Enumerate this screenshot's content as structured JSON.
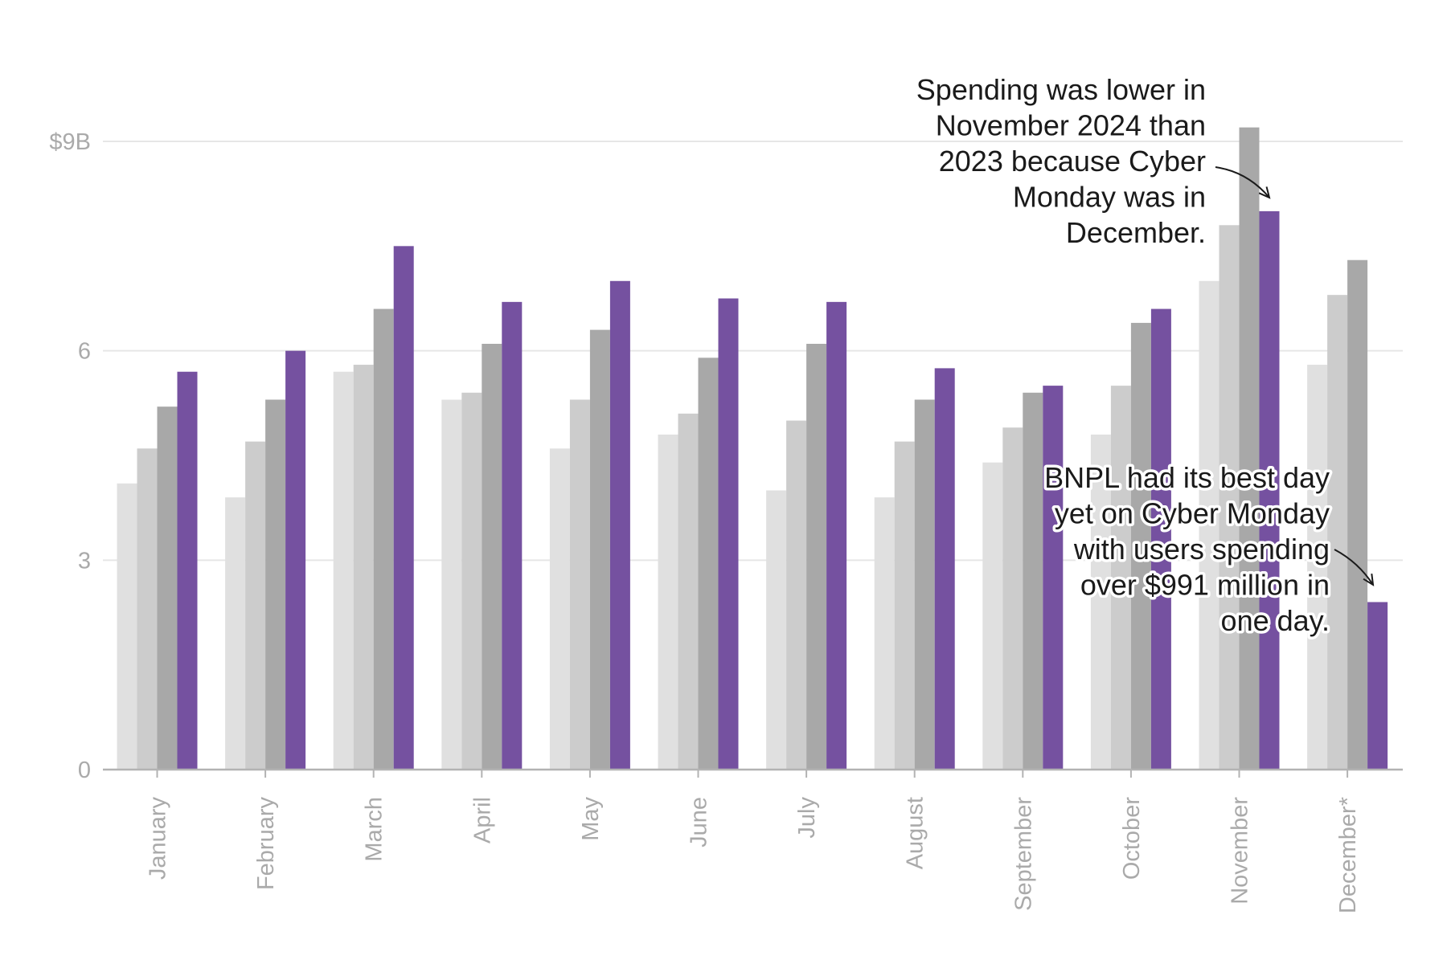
{
  "chart_data": {
    "type": "bar",
    "categories": [
      "January",
      "February",
      "March",
      "April",
      "May",
      "June",
      "July",
      "August",
      "September",
      "October",
      "November",
      "December*"
    ],
    "series": [
      {
        "color": "#e0e0e0",
        "values": [
          4.1,
          3.9,
          5.7,
          5.3,
          4.6,
          4.8,
          4.0,
          3.9,
          4.4,
          4.8,
          7.0,
          5.8
        ]
      },
      {
        "color": "#cccccc",
        "values": [
          4.6,
          4.7,
          5.8,
          5.4,
          5.3,
          5.1,
          5.0,
          4.7,
          4.9,
          5.5,
          7.8,
          6.8
        ]
      },
      {
        "color": "#a8a8a8",
        "values": [
          5.2,
          5.3,
          6.6,
          6.1,
          6.3,
          5.9,
          6.1,
          5.3,
          5.4,
          6.4,
          9.2,
          7.3
        ]
      },
      {
        "color": "#7551a0",
        "values": [
          5.7,
          6.0,
          7.5,
          6.7,
          7.0,
          6.75,
          6.7,
          5.75,
          5.5,
          6.6,
          8.0,
          2.4
        ]
      }
    ],
    "yticks": [
      0,
      3,
      6,
      9
    ],
    "ytick_labels": [
      "0",
      "3",
      "6",
      "$9B"
    ],
    "ylim": [
      0,
      9.5
    ],
    "grid": true,
    "annotations": [
      {
        "id": "november",
        "category_index": 10,
        "series_index": 3,
        "value": 8.0,
        "lines": [
          "Spending was lower in",
          "November 2024 than",
          "2023 because Cyber",
          "Monday was in",
          "December."
        ]
      },
      {
        "id": "december",
        "category_index": 11,
        "series_index": 3,
        "value": 2.4,
        "lines": [
          "BNPL had its best day",
          "yet on Cyber Monday",
          "with users spending",
          "over $991 million in",
          "one day."
        ]
      }
    ]
  },
  "colors": {
    "grid": "#e6e6e6",
    "axis": "#b3b3b3",
    "tick_text": "#aaaaaa",
    "annotation_text": "#1a1a1a"
  }
}
